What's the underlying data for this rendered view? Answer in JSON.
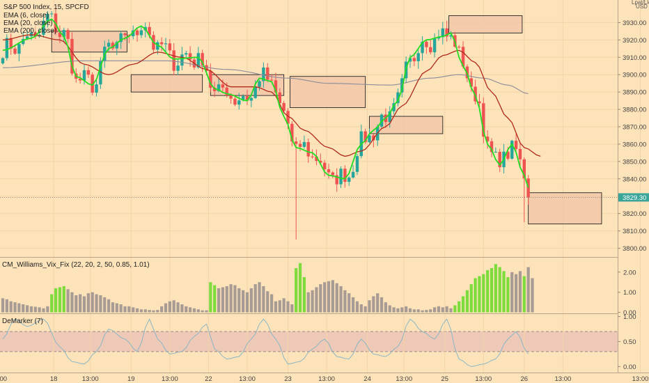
{
  "header": {
    "symbol_line": "S&P 500 Index, 15, SPCFD",
    "ema_labels": [
      "EMA (6, close)",
      "EMA (20, close)",
      "EMA (200, close)"
    ],
    "currency": "USD",
    "currency_prefix": "Lpat/Llo"
  },
  "colors": {
    "background": "#fde3ba",
    "up_candle": "#26a69a",
    "down_candle": "#ef5350",
    "ema6": "#22dd22",
    "ema20": "#b02a1a",
    "ema200": "#8a8a9a",
    "zone_fill": "#f2c4a6",
    "vix_green": "#7ddc3c",
    "vix_gray": "#a79b94",
    "demarker_line": "#8ab6c4",
    "demarker_band": "#e8c0b6"
  },
  "chart_data": [
    {
      "type": "candlestick",
      "title": "S&P 500 Index, 15, SPCFD",
      "ylabel": "USD",
      "ylim": [
        3795,
        3943
      ],
      "yticks": [
        3800,
        3810,
        3820,
        3830,
        3840,
        3850,
        3860,
        3870,
        3880,
        3890,
        3900,
        3910,
        3920,
        3930
      ],
      "ytick_labels": [
        "3800.00",
        "3810.00",
        "3820.00",
        "3830.00",
        "3840.00",
        "3850.00",
        "3860.00",
        "3870.00",
        "3880.00",
        "3890.00",
        "3900.00",
        "3910.00",
        "3920.00",
        "3930.00"
      ],
      "last_price": 3829.3,
      "last_price_label": "3829.30",
      "series": [
        {
          "name": "EMA (6, close)",
          "anchors": [
            [
              0,
              3914
            ],
            [
              7,
              3921
            ],
            [
              12,
              3932
            ],
            [
              15,
              3922
            ],
            [
              18,
              3899
            ],
            [
              22,
              3894
            ],
            [
              26,
              3915
            ],
            [
              30,
              3921
            ],
            [
              34,
              3928
            ],
            [
              38,
              3917
            ],
            [
              42,
              3909
            ],
            [
              48,
              3910
            ],
            [
              52,
              3892
            ],
            [
              55,
              3889
            ],
            [
              60,
              3885
            ],
            [
              63,
              3898
            ],
            [
              66,
              3896
            ],
            [
              69,
              3876
            ],
            [
              72,
              3858
            ],
            [
              76,
              3855
            ],
            [
              80,
              3842
            ],
            [
              84,
              3840
            ],
            [
              88,
              3860
            ],
            [
              91,
              3868
            ],
            [
              94,
              3875
            ],
            [
              97,
              3885
            ],
            [
              100,
              3910
            ],
            [
              104,
              3920
            ],
            [
              108,
              3922
            ],
            [
              110,
              3924
            ],
            [
              113,
              3905
            ],
            [
              116,
              3888
            ],
            [
              119,
              3860
            ],
            [
              122,
              3848
            ],
            [
              125,
              3860
            ],
            [
              128,
              3842
            ],
            [
              129,
              3835
            ]
          ]
        },
        {
          "name": "EMA (20, close)",
          "anchors": [
            [
              0,
              3920
            ],
            [
              7,
              3923
            ],
            [
              14,
              3920
            ],
            [
              20,
              3906
            ],
            [
              26,
              3900
            ],
            [
              32,
              3906
            ],
            [
              38,
              3913
            ],
            [
              44,
              3910
            ],
            [
              50,
              3903
            ],
            [
              56,
              3893
            ],
            [
              62,
              3893
            ],
            [
              66,
              3890
            ],
            [
              70,
              3876
            ],
            [
              74,
              3868
            ],
            [
              80,
              3858
            ],
            [
              84,
              3853
            ],
            [
              88,
              3856
            ],
            [
              94,
              3870
            ],
            [
              98,
              3882
            ],
            [
              104,
              3902
            ],
            [
              108,
              3911
            ],
            [
              112,
              3914
            ],
            [
              116,
              3907
            ],
            [
              120,
              3890
            ],
            [
              124,
              3875
            ],
            [
              128,
              3858
            ],
            [
              132,
              3853
            ]
          ]
        },
        {
          "name": "EMA (200, close)",
          "anchors": [
            [
              0,
              3904
            ],
            [
              20,
              3908
            ],
            [
              40,
              3908
            ],
            [
              55,
              3903
            ],
            [
              70,
              3898
            ],
            [
              80,
              3895
            ],
            [
              95,
              3894
            ],
            [
              105,
              3898
            ],
            [
              112,
              3900
            ],
            [
              118,
              3898
            ],
            [
              124,
              3894
            ],
            [
              129,
              3889
            ]
          ]
        }
      ],
      "zones": [
        {
          "x0": 12,
          "x1": 30.5,
          "y0": 3913,
          "y1": 3925
        },
        {
          "x0": 31.5,
          "x1": 49,
          "y0": 3890,
          "y1": 3900
        },
        {
          "x0": 51,
          "x1": 69,
          "y0": 3888,
          "y1": 3900
        },
        {
          "x0": 70.5,
          "x1": 89,
          "y0": 3881,
          "y1": 3899
        },
        {
          "x0": 90,
          "x1": 108,
          "y0": 3866,
          "y1": 3876
        },
        {
          "x0": 109.5,
          "x1": 127.5,
          "y0": 3924,
          "y1": 3934
        },
        {
          "x0": 129,
          "x1": 147,
          "y0": 3814,
          "y1": 3832
        }
      ]
    },
    {
      "type": "bar",
      "title": "CM_Williams_Vix_Fix (22, 20, 2, 50, 0.85, 1.01)",
      "ylim": [
        -0.05,
        2.65
      ],
      "yticks": [
        0,
        1,
        2
      ],
      "ytick_labels": [
        "0.00",
        "1.00",
        "2.00"
      ],
      "values": [
        0.7,
        0.65,
        0.55,
        0.5,
        0.45,
        0.4,
        0.35,
        0.3,
        0.28,
        0.25,
        0.2,
        0.3,
        0.9,
        1.2,
        1.25,
        1.3,
        1.15,
        1.0,
        0.85,
        0.9,
        0.8,
        0.95,
        1.0,
        0.9,
        0.85,
        0.75,
        0.65,
        0.5,
        0.45,
        0.4,
        0.3,
        0.3,
        0.25,
        0.2,
        0.15,
        0.15,
        0.12,
        0.1,
        0.12,
        0.3,
        0.45,
        0.55,
        0.6,
        0.5,
        0.4,
        0.3,
        0.25,
        0.2,
        0.15,
        0.1,
        0.1,
        1.5,
        1.35,
        1.2,
        1.25,
        1.3,
        1.4,
        1.35,
        1.2,
        1.1,
        1.0,
        1.2,
        1.4,
        1.5,
        1.3,
        1.05,
        0.9,
        0.55,
        0.6,
        0.7,
        0.55,
        0.4,
        2.2,
        2.45,
        1.75,
        1.0,
        1.1,
        1.25,
        1.4,
        1.5,
        1.55,
        1.6,
        1.45,
        1.3,
        1.1,
        0.95,
        0.75,
        0.55,
        0.4,
        0.3,
        0.6,
        0.8,
        0.95,
        0.75,
        0.5,
        0.35,
        0.25,
        0.2,
        0.25,
        0.3,
        0.2,
        0.15,
        0.15,
        0.1,
        0.12,
        0.15,
        0.25,
        0.3,
        0.25,
        0.3,
        0.2,
        0.35,
        0.55,
        0.8,
        1.1,
        1.4,
        1.7,
        1.8,
        1.9,
        2.1,
        2.2,
        2.4,
        2.25,
        2.05,
        1.75,
        2.0,
        1.9,
        2.05,
        1.8,
        2.25,
        1.7
      ],
      "green_from": [
        12,
        13,
        14,
        15,
        51,
        52,
        72,
        73,
        74,
        111,
        112,
        113,
        114,
        115,
        116,
        117,
        118,
        119,
        120,
        121,
        122,
        123,
        124,
        128
      ]
    },
    {
      "type": "line",
      "title": "DeMarker (7)",
      "ylim": [
        -0.12,
        1.05
      ],
      "yticks": [
        0,
        0.5,
        1
      ],
      "ytick_labels": [
        "0.00",
        "0.50",
        "1.00"
      ],
      "bands": [
        0.3,
        0.7
      ],
      "anchors": [
        [
          0,
          0.55
        ],
        [
          3,
          0.95
        ],
        [
          6,
          0.8
        ],
        [
          10,
          0.95
        ],
        [
          14,
          0.4
        ],
        [
          17,
          0.1
        ],
        [
          20,
          0.05
        ],
        [
          23,
          0.3
        ],
        [
          26,
          0.75
        ],
        [
          30,
          0.55
        ],
        [
          33,
          0.3
        ],
        [
          36,
          0.95
        ],
        [
          38,
          0.55
        ],
        [
          41,
          0.25
        ],
        [
          44,
          0.3
        ],
        [
          47,
          0.6
        ],
        [
          50,
          0.85
        ],
        [
          52,
          0.35
        ],
        [
          55,
          0.15
        ],
        [
          58,
          0.2
        ],
        [
          61,
          0.55
        ],
        [
          64,
          0.95
        ],
        [
          67,
          0.55
        ],
        [
          70,
          0.05
        ],
        [
          73,
          0.1
        ],
        [
          76,
          0.35
        ],
        [
          79,
          0.55
        ],
        [
          82,
          0.2
        ],
        [
          85,
          0.15
        ],
        [
          88,
          0.55
        ],
        [
          91,
          0.25
        ],
        [
          94,
          0.2
        ],
        [
          97,
          0.4
        ],
        [
          100,
          0.95
        ],
        [
          103,
          0.7
        ],
        [
          106,
          0.55
        ],
        [
          109,
          0.95
        ],
        [
          112,
          0.15
        ],
        [
          115,
          0.0
        ],
        [
          118,
          0.05
        ],
        [
          121,
          0.15
        ],
        [
          124,
          0.55
        ],
        [
          126,
          0.7
        ],
        [
          129,
          0.25
        ]
      ]
    }
  ],
  "x_axis": {
    "labels": [
      {
        "text": "13:00",
        "bar": -1
      },
      {
        "text": "18",
        "bar": 12.5
      },
      {
        "text": "13:00",
        "bar": 21.5
      },
      {
        "text": "19",
        "bar": 31.5
      },
      {
        "text": "13:00",
        "bar": 41
      },
      {
        "text": "22",
        "bar": 50.5
      },
      {
        "text": "13:00",
        "bar": 60
      },
      {
        "text": "23",
        "bar": 70
      },
      {
        "text": "13:00",
        "bar": 79.5
      },
      {
        "text": "24",
        "bar": 89.5
      },
      {
        "text": "13:00",
        "bar": 98.5
      },
      {
        "text": "25",
        "bar": 108.5
      },
      {
        "text": "13:00",
        "bar": 118
      },
      {
        "text": "26",
        "bar": 128
      },
      {
        "text": "13:00",
        "bar": 137.5
      },
      {
        "text": "13:00",
        "bar": 156.5
      }
    ]
  }
}
